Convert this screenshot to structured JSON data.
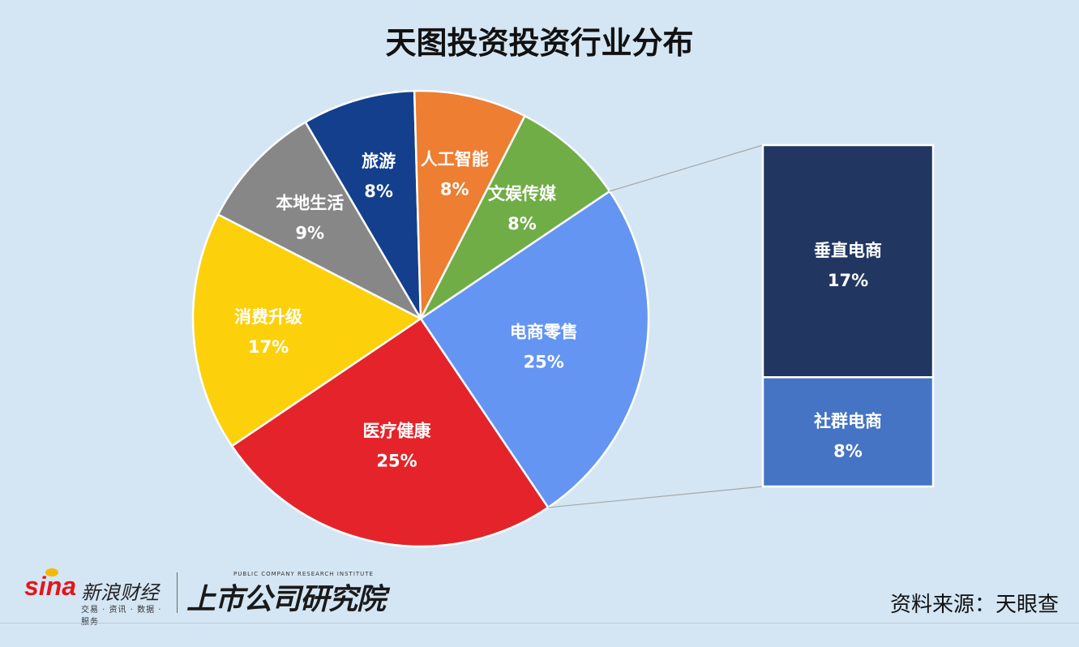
{
  "title": "天图投资投资行业分布",
  "source": "资料来源：天眼查",
  "logos": {
    "sina_brand": "sina",
    "sina_name": "新浪财经",
    "sina_tagline": "交易 · 资讯 · 数据 · 服务",
    "institute_en": "PUBLIC COMPANY RESEARCH INSTITUTE",
    "institute_cn": "上市公司研究院"
  },
  "chart_data": [
    {
      "type": "pie",
      "title": "天图投资投资行业分布",
      "start_angle_deg": 56,
      "slices": [
        {
          "label": "电商零售",
          "value": 25,
          "display": "25%",
          "color": "#6495f2"
        },
        {
          "label": "医疗健康",
          "value": 25,
          "display": "25%",
          "color": "#e4242a"
        },
        {
          "label": "消费升级",
          "value": 17,
          "display": "17%",
          "color": "#fcd10b"
        },
        {
          "label": "本地生活",
          "value": 9,
          "display": "9%",
          "color": "#878787"
        },
        {
          "label": "旅游",
          "value": 8,
          "display": "8%",
          "color": "#133f8c"
        },
        {
          "label": "人工智能",
          "value": 8,
          "display": "8%",
          "color": "#ed7e32"
        },
        {
          "label": "文娱传媒",
          "value": 8,
          "display": "8%",
          "color": "#70ad46"
        }
      ]
    },
    {
      "type": "bar",
      "stacked": true,
      "breakdown_of": "电商零售",
      "segments": [
        {
          "label": "垂直电商",
          "value": 17,
          "display": "17%",
          "color": "#213761"
        },
        {
          "label": "社群电商",
          "value": 8,
          "display": "8%",
          "color": "#4574c4"
        }
      ]
    }
  ]
}
